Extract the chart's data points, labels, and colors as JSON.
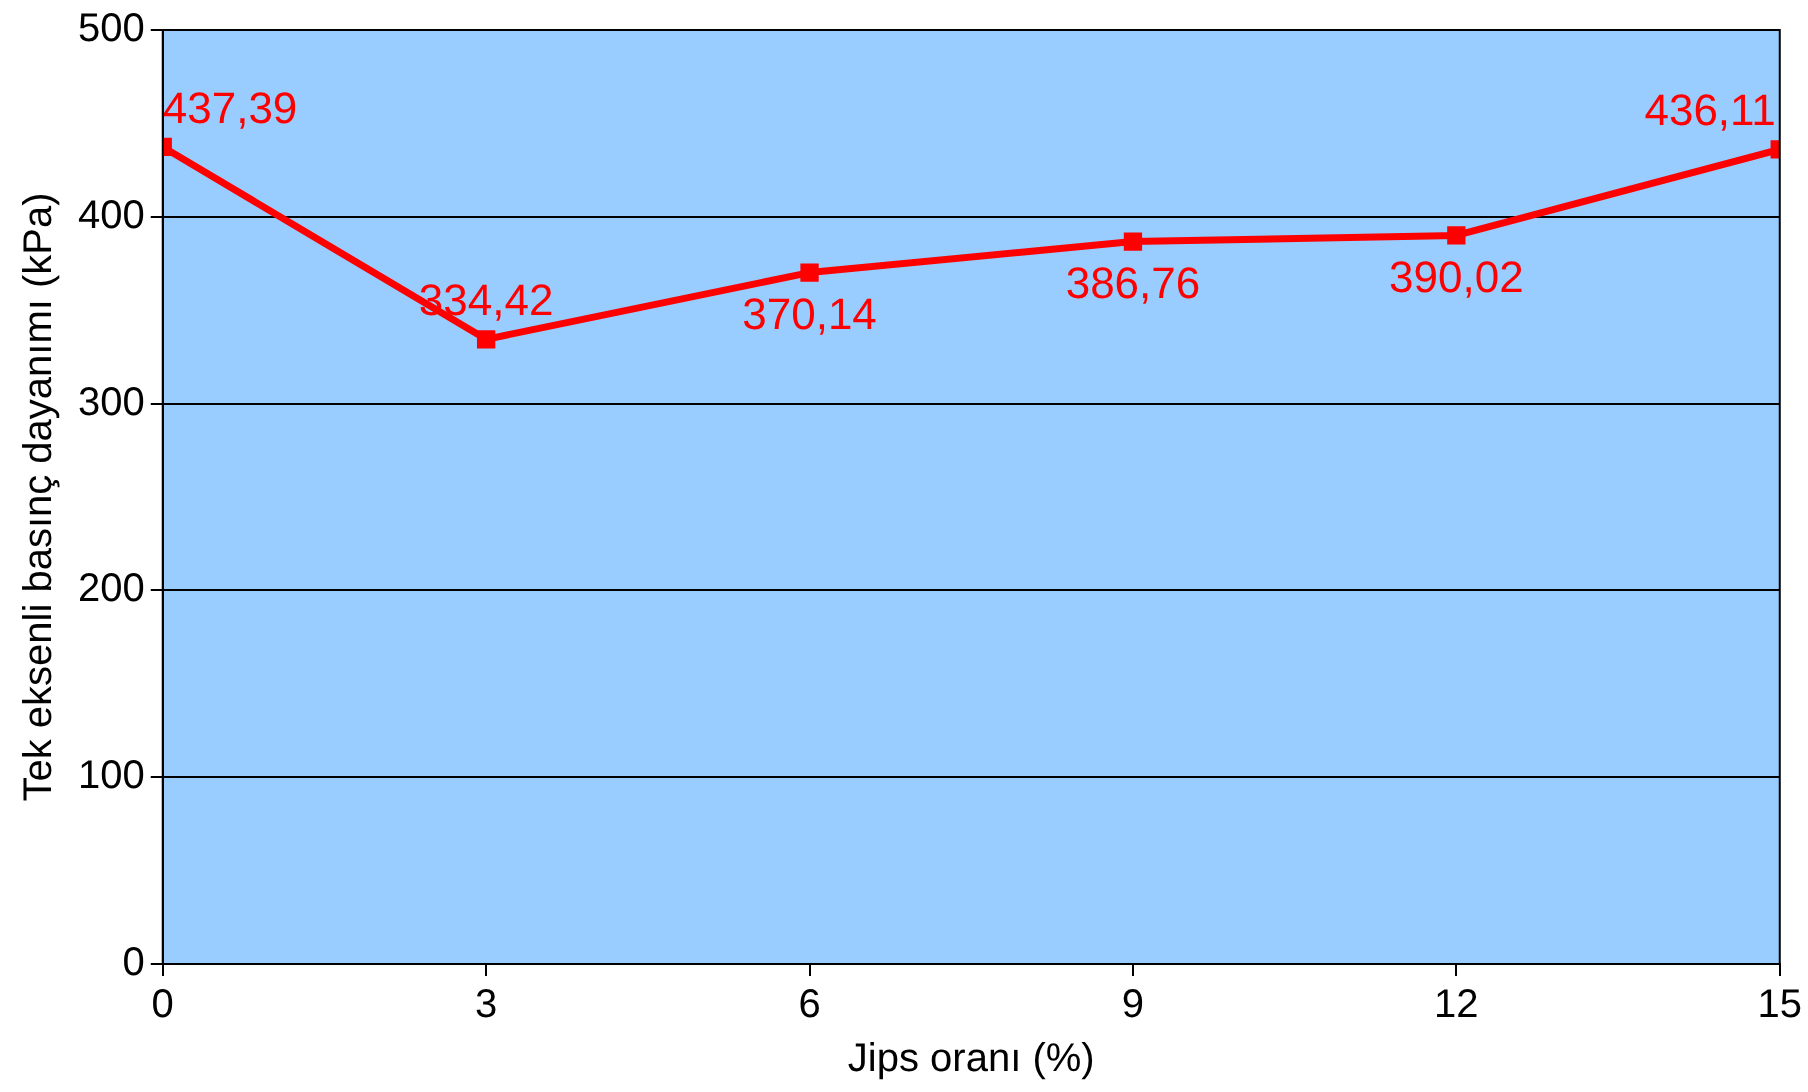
{
  "chart_data": {
    "type": "line",
    "xlabel": "Jips oranı (%)",
    "ylabel": "Tek eksenli basınç dayanımı (kPa)",
    "x": [
      0,
      3,
      6,
      9,
      12,
      15
    ],
    "series": [
      {
        "color": "#ff0000",
        "values": [
          437.39,
          334.42,
          370.14,
          386.76,
          390.02,
          436.11
        ],
        "value_labels": [
          "437,39",
          "334,42",
          "370,14",
          "386,76",
          "390,02",
          "436,11"
        ]
      }
    ],
    "xlim": [
      0,
      15
    ],
    "xticks": [
      0,
      3,
      6,
      9,
      12,
      15
    ],
    "ylim": [
      0,
      500
    ],
    "yticks": [
      0,
      100,
      200,
      300,
      400,
      500
    ],
    "grid": "y",
    "legend": false,
    "marker": "square",
    "line_style": "solid"
  }
}
